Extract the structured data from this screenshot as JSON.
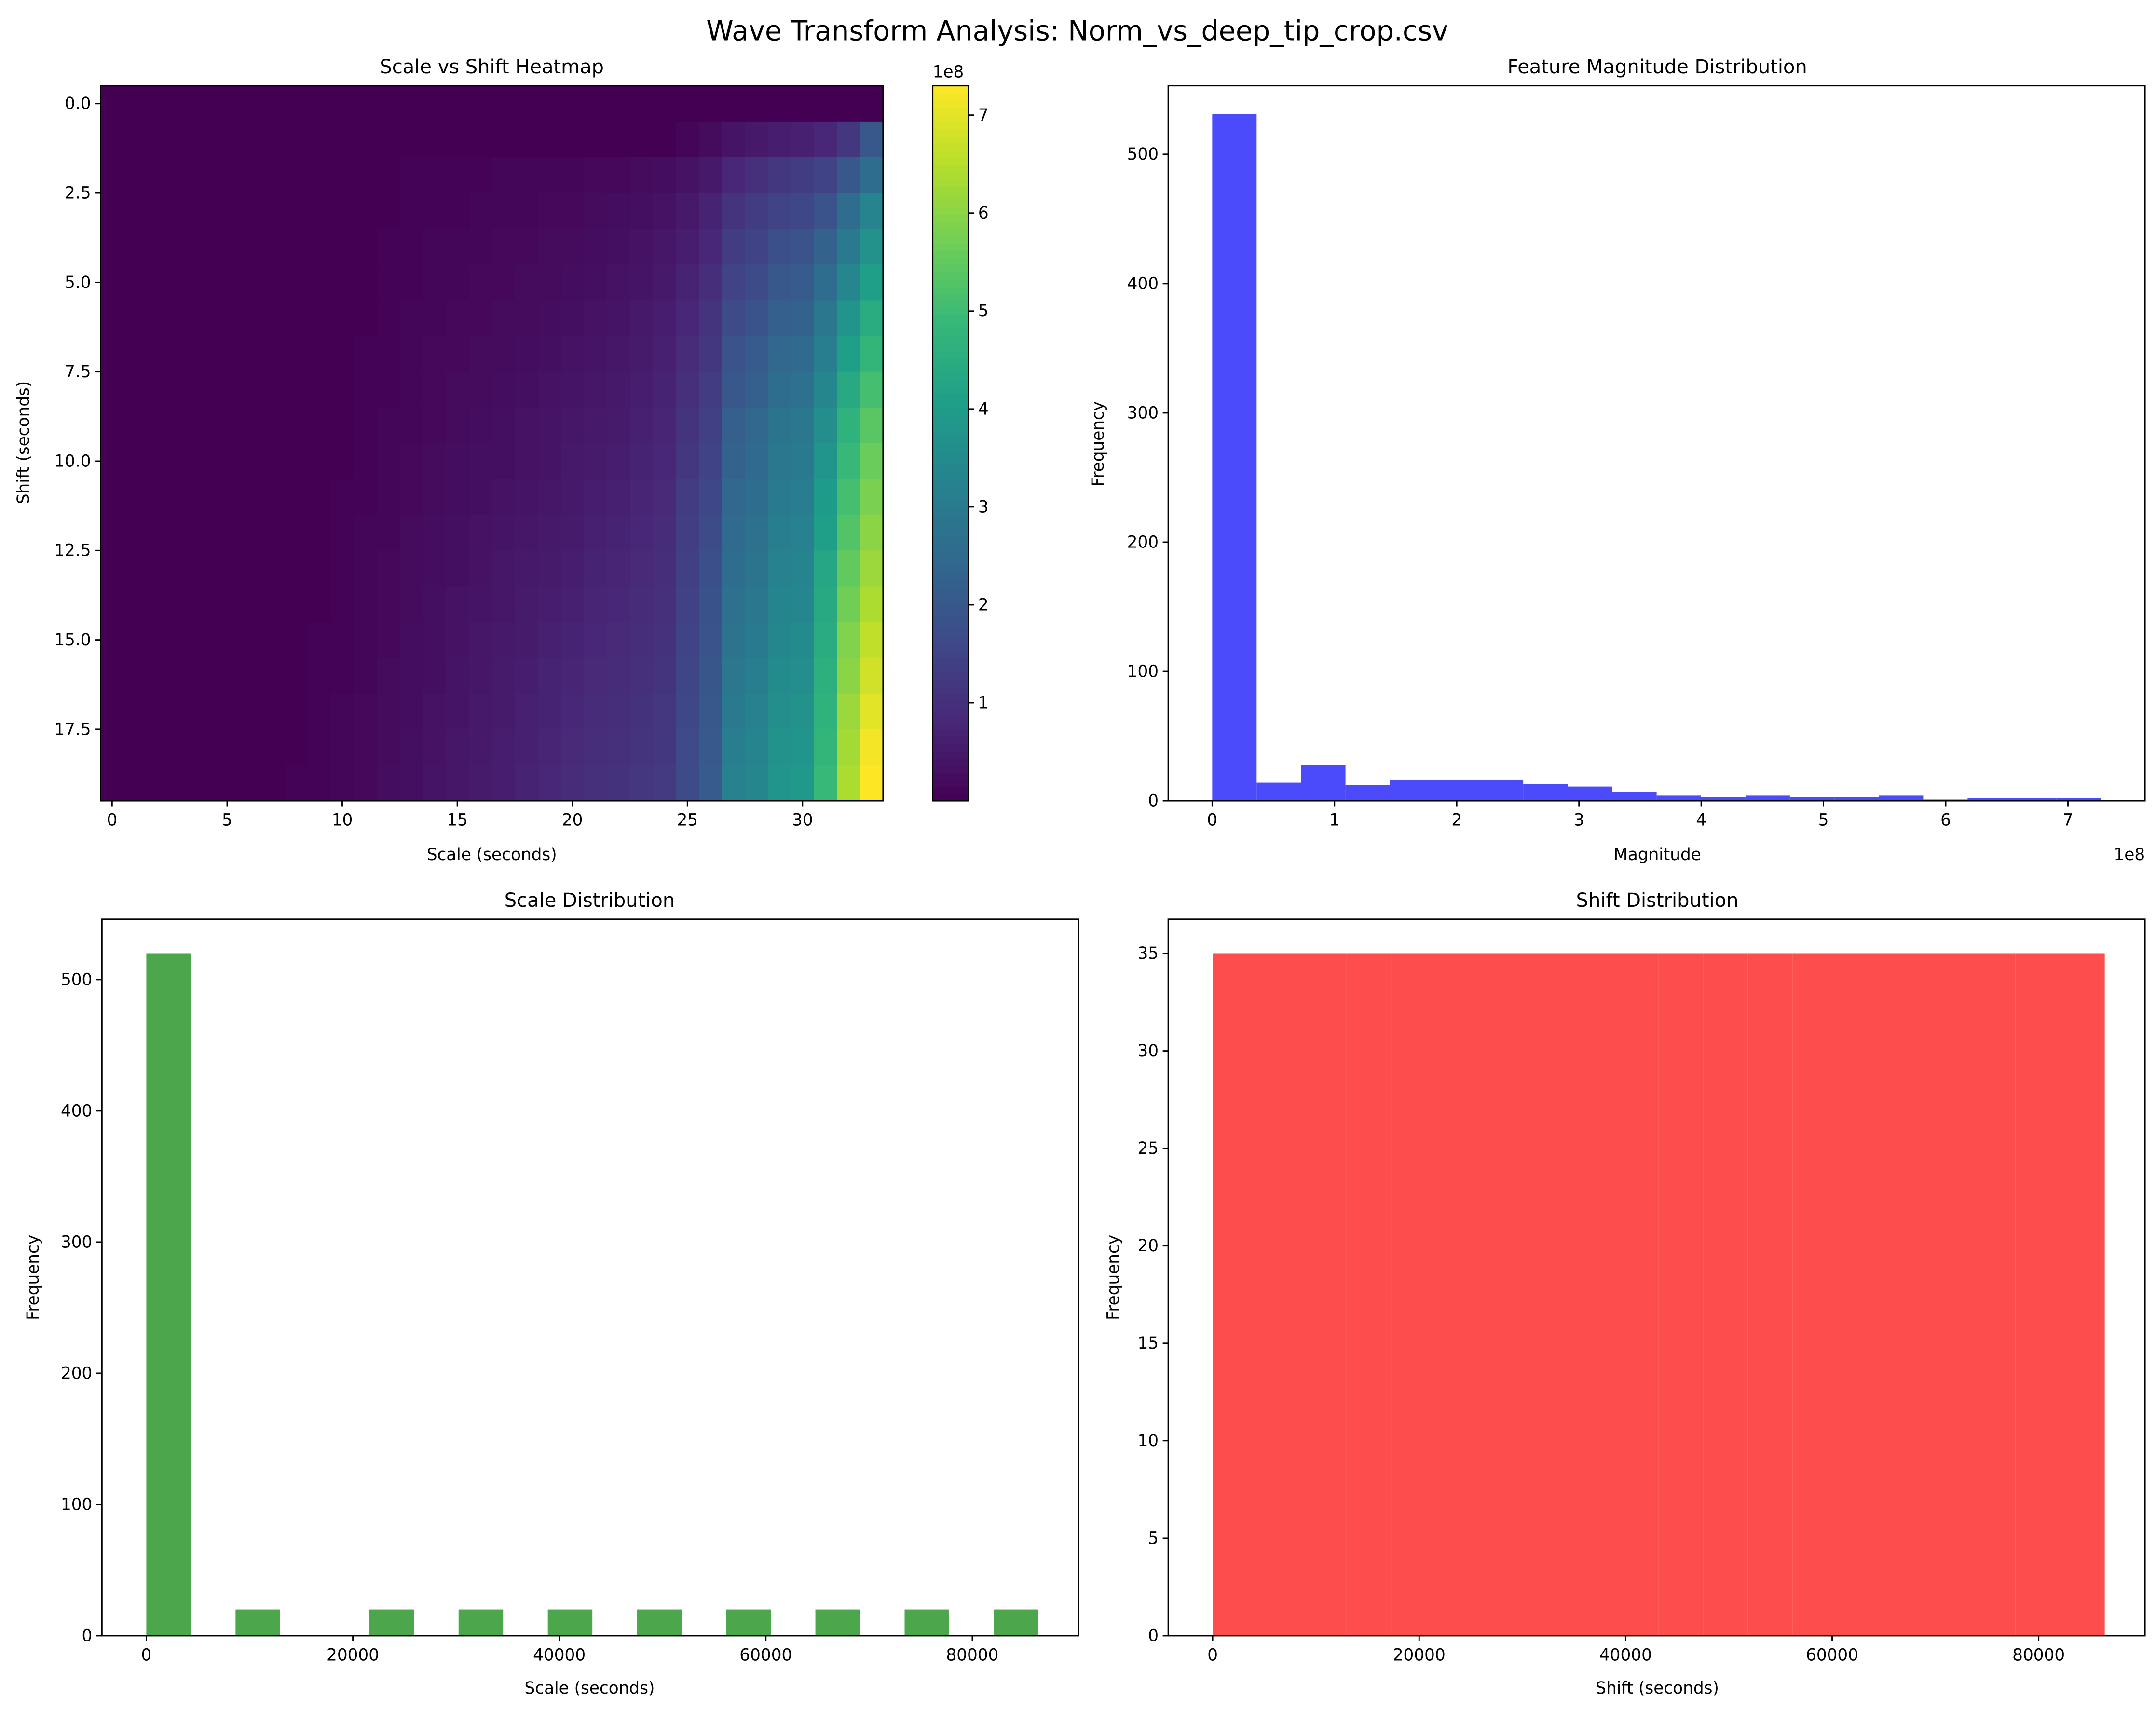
{
  "suptitle": "Wave Transform Analysis: Norm_vs_deep_tip_crop.csv",
  "colors": {
    "magnitude": "#4b4bfb",
    "scale": "#4ca64c",
    "shift": "#fe4d4d",
    "axis": "#000000",
    "viridis": [
      "#440154",
      "#482878",
      "#3e4989",
      "#31688e",
      "#26828e",
      "#1f9e89",
      "#35b779",
      "#6ece58",
      "#b5de2b",
      "#fde725"
    ]
  },
  "chart_data": [
    {
      "type": "heatmap",
      "title": "Scale vs Shift Heatmap",
      "xlabel": "Scale (seconds)",
      "ylabel": "Shift (seconds)",
      "xlim": [
        -0.5,
        33.5
      ],
      "ylim": [
        -0.5,
        19.5
      ],
      "x_ticks": [
        0,
        5,
        10,
        15,
        20,
        25,
        30
      ],
      "y_ticks": [
        0.0,
        2.5,
        5.0,
        7.5,
        10.0,
        12.5,
        15.0,
        17.5
      ],
      "colorbar": {
        "min": 0,
        "max": 7.3,
        "ticks": [
          1,
          2,
          3,
          4,
          5,
          6,
          7
        ],
        "offset_label": "1e8",
        "colormap": "viridis"
      },
      "matrix_note": "rows = shift index 0-19, columns = scale index 0-33; values in units of 1e8",
      "matrix": [
        [
          0,
          0,
          0,
          0,
          0,
          0,
          0,
          0,
          0,
          0,
          0,
          0,
          0,
          0,
          0,
          0,
          0,
          0,
          0,
          0,
          0,
          0,
          0,
          0,
          0,
          0,
          0,
          0,
          0,
          0,
          0,
          0,
          0,
          0
        ],
        [
          0,
          0,
          0,
          0,
          0,
          0,
          0,
          0,
          0,
          0,
          0,
          0,
          0,
          0,
          0,
          0,
          0,
          0,
          0,
          0,
          0,
          0,
          0,
          0,
          0,
          0.1,
          0.2,
          0.4,
          0.5,
          0.6,
          0.65,
          0.8,
          1.2,
          2.0
        ],
        [
          0,
          0,
          0,
          0,
          0,
          0,
          0,
          0,
          0,
          0,
          0,
          0,
          0,
          0.05,
          0.05,
          0.05,
          0.05,
          0.1,
          0.1,
          0.1,
          0.1,
          0.15,
          0.15,
          0.2,
          0.25,
          0.35,
          0.5,
          0.8,
          1.0,
          1.2,
          1.3,
          1.5,
          2.0,
          2.6
        ],
        [
          0,
          0,
          0,
          0,
          0,
          0,
          0,
          0,
          0,
          0,
          0,
          0,
          0,
          0.05,
          0.05,
          0.05,
          0.1,
          0.1,
          0.1,
          0.15,
          0.15,
          0.2,
          0.25,
          0.3,
          0.35,
          0.5,
          0.7,
          1.1,
          1.3,
          1.5,
          1.6,
          1.9,
          2.6,
          3.3
        ],
        [
          0,
          0,
          0,
          0,
          0,
          0,
          0,
          0,
          0,
          0,
          0,
          0,
          0.05,
          0.05,
          0.1,
          0.1,
          0.1,
          0.15,
          0.15,
          0.2,
          0.2,
          0.25,
          0.3,
          0.35,
          0.45,
          0.6,
          0.8,
          1.3,
          1.5,
          1.8,
          1.9,
          2.3,
          3.0,
          3.7
        ],
        [
          0,
          0,
          0,
          0,
          0,
          0,
          0,
          0,
          0,
          0,
          0,
          0,
          0.05,
          0.05,
          0.1,
          0.1,
          0.15,
          0.15,
          0.2,
          0.2,
          0.25,
          0.3,
          0.35,
          0.4,
          0.5,
          0.7,
          0.95,
          1.5,
          1.7,
          2.0,
          2.1,
          2.6,
          3.4,
          4.1
        ],
        [
          0,
          0,
          0,
          0,
          0,
          0,
          0,
          0,
          0,
          0,
          0,
          0,
          0.05,
          0.1,
          0.1,
          0.15,
          0.15,
          0.2,
          0.2,
          0.25,
          0.3,
          0.35,
          0.4,
          0.5,
          0.6,
          0.8,
          1.1,
          1.7,
          1.9,
          2.2,
          2.3,
          2.9,
          3.8,
          4.5
        ],
        [
          0,
          0,
          0,
          0,
          0,
          0,
          0,
          0,
          0,
          0,
          0,
          0.05,
          0.05,
          0.1,
          0.15,
          0.15,
          0.2,
          0.2,
          0.25,
          0.3,
          0.35,
          0.4,
          0.45,
          0.55,
          0.65,
          0.9,
          1.2,
          1.9,
          2.1,
          2.4,
          2.5,
          3.1,
          4.1,
          4.8
        ],
        [
          0,
          0,
          0,
          0,
          0,
          0,
          0,
          0,
          0,
          0,
          0,
          0.05,
          0.05,
          0.1,
          0.15,
          0.2,
          0.2,
          0.25,
          0.3,
          0.35,
          0.4,
          0.45,
          0.5,
          0.6,
          0.7,
          1.0,
          1.3,
          2.0,
          2.2,
          2.6,
          2.7,
          3.4,
          4.4,
          5.1
        ],
        [
          0,
          0,
          0,
          0,
          0,
          0,
          0,
          0,
          0,
          0,
          0,
          0.05,
          0.1,
          0.1,
          0.15,
          0.2,
          0.25,
          0.3,
          0.35,
          0.4,
          0.45,
          0.5,
          0.55,
          0.65,
          0.75,
          1.1,
          1.4,
          2.2,
          2.4,
          2.8,
          2.9,
          3.6,
          4.7,
          5.4
        ],
        [
          0,
          0,
          0,
          0,
          0,
          0,
          0,
          0,
          0,
          0,
          0,
          0.05,
          0.1,
          0.15,
          0.2,
          0.25,
          0.3,
          0.3,
          0.35,
          0.4,
          0.5,
          0.55,
          0.6,
          0.7,
          0.8,
          1.2,
          1.5,
          2.3,
          2.5,
          2.9,
          3.0,
          3.8,
          4.9,
          5.6
        ],
        [
          0,
          0,
          0,
          0,
          0,
          0,
          0,
          0,
          0,
          0,
          0.05,
          0.05,
          0.1,
          0.15,
          0.2,
          0.25,
          0.3,
          0.35,
          0.4,
          0.45,
          0.5,
          0.6,
          0.65,
          0.75,
          0.85,
          1.3,
          1.6,
          2.4,
          2.6,
          3.0,
          3.1,
          4.0,
          5.1,
          5.8
        ],
        [
          0,
          0,
          0,
          0,
          0,
          0,
          0,
          0,
          0,
          0,
          0.05,
          0.1,
          0.1,
          0.2,
          0.25,
          0.3,
          0.35,
          0.4,
          0.45,
          0.5,
          0.55,
          0.65,
          0.7,
          0.8,
          0.9,
          1.35,
          1.7,
          2.5,
          2.7,
          3.1,
          3.2,
          4.1,
          5.3,
          6.0
        ],
        [
          0,
          0,
          0,
          0,
          0,
          0,
          0,
          0,
          0,
          0,
          0.05,
          0.1,
          0.15,
          0.2,
          0.25,
          0.3,
          0.35,
          0.45,
          0.5,
          0.55,
          0.6,
          0.7,
          0.75,
          0.85,
          0.95,
          1.4,
          1.8,
          2.6,
          2.8,
          3.2,
          3.3,
          4.3,
          5.5,
          6.2
        ],
        [
          0,
          0,
          0,
          0,
          0,
          0,
          0,
          0,
          0,
          0,
          0.05,
          0.1,
          0.15,
          0.2,
          0.3,
          0.35,
          0.4,
          0.45,
          0.55,
          0.6,
          0.65,
          0.75,
          0.8,
          0.9,
          1.0,
          1.45,
          1.85,
          2.7,
          2.9,
          3.3,
          3.4,
          4.4,
          5.7,
          6.4
        ],
        [
          0,
          0,
          0,
          0,
          0,
          0,
          0,
          0,
          0,
          0.05,
          0.05,
          0.1,
          0.15,
          0.25,
          0.3,
          0.35,
          0.45,
          0.5,
          0.55,
          0.65,
          0.7,
          0.8,
          0.85,
          0.95,
          1.05,
          1.5,
          1.9,
          2.8,
          3.0,
          3.4,
          3.5,
          4.5,
          5.9,
          6.6
        ],
        [
          0,
          0,
          0,
          0,
          0,
          0,
          0,
          0,
          0,
          0.05,
          0.05,
          0.1,
          0.2,
          0.25,
          0.3,
          0.4,
          0.45,
          0.55,
          0.6,
          0.7,
          0.75,
          0.85,
          0.9,
          1.0,
          1.1,
          1.55,
          1.95,
          2.9,
          3.1,
          3.5,
          3.6,
          4.6,
          6.0,
          6.8
        ],
        [
          0,
          0,
          0,
          0,
          0,
          0,
          0,
          0,
          0,
          0.05,
          0.1,
          0.15,
          0.2,
          0.25,
          0.35,
          0.4,
          0.5,
          0.55,
          0.65,
          0.7,
          0.8,
          0.9,
          0.95,
          1.05,
          1.15,
          1.6,
          2.0,
          3.0,
          3.2,
          3.6,
          3.7,
          4.7,
          6.2,
          7.0
        ],
        [
          0,
          0,
          0,
          0,
          0,
          0,
          0,
          0,
          0,
          0.05,
          0.1,
          0.15,
          0.2,
          0.3,
          0.35,
          0.45,
          0.5,
          0.6,
          0.65,
          0.75,
          0.85,
          0.95,
          1.0,
          1.1,
          1.2,
          1.65,
          2.05,
          3.1,
          3.3,
          3.7,
          3.8,
          4.8,
          6.3,
          7.2
        ],
        [
          0,
          0,
          0,
          0,
          0,
          0,
          0,
          0,
          0.05,
          0.05,
          0.1,
          0.15,
          0.25,
          0.3,
          0.4,
          0.45,
          0.55,
          0.6,
          0.7,
          0.8,
          0.9,
          1.0,
          1.05,
          1.15,
          1.25,
          1.7,
          2.1,
          3.2,
          3.4,
          3.8,
          3.9,
          4.9,
          6.4,
          7.3
        ]
      ]
    },
    {
      "type": "bar",
      "subtype": "histogram",
      "title": "Feature Magnitude Distribution",
      "xlabel": "Magnitude",
      "ylabel": "Frequency",
      "x_offset_label": "1e8",
      "xlim": [
        -0.36,
        7.63
      ],
      "ylim": [
        0,
        553
      ],
      "x_ticks": [
        0,
        1,
        2,
        3,
        4,
        5,
        6,
        7
      ],
      "y_ticks": [
        0,
        100,
        200,
        300,
        400,
        500
      ],
      "bin_edges": [
        0,
        0.363,
        0.727,
        1.09,
        1.454,
        1.817,
        2.181,
        2.544,
        2.908,
        3.271,
        3.635,
        3.998,
        4.362,
        4.725,
        5.089,
        5.452,
        5.816,
        6.179,
        6.543,
        6.906,
        7.27
      ],
      "values": [
        531,
        14,
        28,
        12,
        16,
        16,
        16,
        13,
        11,
        7,
        4,
        3,
        4,
        3,
        3,
        4,
        1,
        2,
        2,
        2
      ]
    },
    {
      "type": "bar",
      "subtype": "histogram",
      "title": "Scale Distribution",
      "xlabel": "Scale (seconds)",
      "ylabel": "Frequency",
      "xlim": [
        -4300,
        90300
      ],
      "ylim": [
        0,
        546
      ],
      "x_ticks": [
        0,
        20000,
        40000,
        60000,
        80000
      ],
      "y_ticks": [
        0,
        100,
        200,
        300,
        400,
        500
      ],
      "bin_edges": [
        0,
        4320,
        8640,
        12960,
        17280,
        21600,
        25920,
        30240,
        34560,
        38880,
        43200,
        47520,
        51840,
        56160,
        60480,
        64800,
        69120,
        73440,
        77760,
        82080,
        86400
      ],
      "values": [
        520,
        0,
        20,
        0,
        0,
        20,
        0,
        20,
        0,
        20,
        0,
        20,
        0,
        20,
        0,
        20,
        0,
        20,
        0,
        20
      ]
    },
    {
      "type": "bar",
      "subtype": "histogram",
      "title": "Shift Distribution",
      "xlabel": "Shift (seconds)",
      "ylabel": "Frequency",
      "xlim": [
        -4300,
        90300
      ],
      "ylim": [
        0,
        36.75
      ],
      "x_ticks": [
        0,
        20000,
        40000,
        60000,
        80000
      ],
      "y_ticks": [
        0,
        5,
        10,
        15,
        20,
        25,
        30,
        35
      ],
      "bin_edges": [
        0,
        4320,
        8640,
        12960,
        17280,
        21600,
        25920,
        30240,
        34560,
        38880,
        43200,
        47520,
        51840,
        56160,
        60480,
        64800,
        69120,
        73440,
        77760,
        82080,
        86400
      ],
      "values": [
        35,
        35,
        35,
        35,
        35,
        35,
        35,
        35,
        35,
        35,
        35,
        35,
        35,
        35,
        35,
        35,
        35,
        35,
        35,
        35
      ]
    }
  ]
}
